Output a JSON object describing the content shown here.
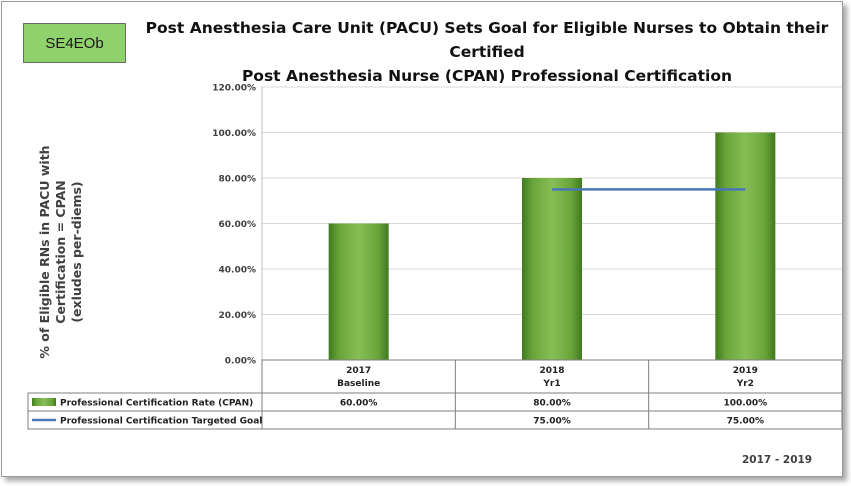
{
  "badge": "SE4EOb",
  "chart_data": {
    "type": "bar",
    "title": "Post Anesthesia Care Unit (PACU) Sets Goal for Eligible Nurses to Obtain their Certified Post Anesthesia Nurse (CPAN) Professional Certification",
    "title_lines": [
      "Post Anesthesia Care Unit (PACU) Sets Goal for Eligible Nurses to Obtain their Certified",
      "Post Anesthesia Nurse (CPAN) Professional Certification"
    ],
    "ylabel_lines": [
      "% of Eligible RNs in PACU with",
      "Certification = CPAN",
      "(exludes per-diems)"
    ],
    "ylim": [
      0,
      120
    ],
    "yticks": [
      "0.00%",
      "20.00%",
      "40.00%",
      "60.00%",
      "80.00%",
      "100.00%",
      "120.00%"
    ],
    "categories": [
      {
        "year": "2017",
        "sub": "Baseline"
      },
      {
        "year": "2018",
        "sub": "Yr1"
      },
      {
        "year": "2019",
        "sub": "Yr2"
      }
    ],
    "series": [
      {
        "name": "Professional Certification Rate (CPAN)",
        "type": "bar",
        "color": "#6aa53a",
        "values": [
          60,
          80,
          100
        ],
        "labels": [
          "60.00%",
          "80.00%",
          "100.00%"
        ]
      },
      {
        "name": "Professional Certification Targeted Goal",
        "type": "line",
        "color": "#4a76b8",
        "values": [
          null,
          75,
          75
        ],
        "labels": [
          "",
          "75.00%",
          "75.00%"
        ]
      }
    ],
    "legend": "data-table"
  },
  "footer": "2017 - 2019"
}
